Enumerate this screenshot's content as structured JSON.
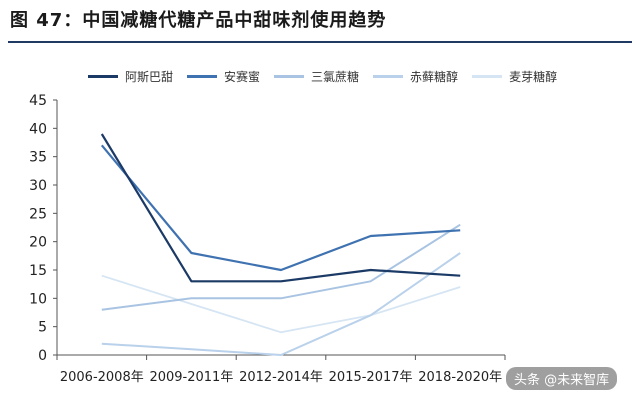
{
  "figure_title": "图 47：中国减糖代糖产品中甜味剂使用趋势",
  "watermark": "头条 @未来智库",
  "colors": {
    "title_rule": "#1f3b63",
    "axis": "#555555"
  },
  "chart_data": {
    "type": "line",
    "title": "",
    "xlabel": "",
    "ylabel": "",
    "ylim": [
      0,
      45
    ],
    "yticks": [
      0,
      5,
      10,
      15,
      20,
      25,
      30,
      35,
      40,
      45
    ],
    "grid": false,
    "legend_position": "top",
    "categories": [
      "2006-2008年",
      "2009-2011年",
      "2012-2014年",
      "2015-2017年",
      "2018-2020年"
    ],
    "series": [
      {
        "name": "阿斯巴甜",
        "color": "#1b3a66",
        "values": [
          39,
          13,
          13,
          15,
          14
        ]
      },
      {
        "name": "安赛蜜",
        "color": "#3f72b0",
        "values": [
          37,
          18,
          15,
          21,
          22
        ]
      },
      {
        "name": "三氯蔗糖",
        "color": "#a9c4e2",
        "values": [
          8,
          10,
          10,
          13,
          23
        ]
      },
      {
        "name": "赤藓糖醇",
        "color": "#b9d1ea",
        "values": [
          2,
          1,
          0,
          7,
          18
        ]
      },
      {
        "name": "麦芽糖醇",
        "color": "#d6e5f3",
        "values": [
          14,
          9,
          4,
          7,
          12
        ]
      }
    ]
  }
}
